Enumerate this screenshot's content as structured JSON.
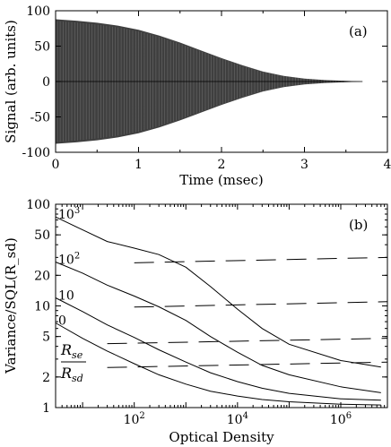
{
  "chart_data": [
    {
      "type": "area",
      "panel_label": "(a)",
      "xlabel": "Time (msec)",
      "ylabel": "Signal (arb. units)",
      "xlim": [
        0,
        4
      ],
      "ylim": [
        -100,
        100
      ],
      "xticks": [
        "0",
        "1",
        "2",
        "3",
        "4"
      ],
      "yticks": [
        "100",
        "50",
        "0",
        "-50",
        "-100"
      ],
      "series": [
        {
          "kind": "oscillating signal envelope (shaded)",
          "color": "#2a2a2a",
          "x": [
            0,
            0.25,
            0.5,
            0.75,
            1.0,
            1.25,
            1.5,
            1.75,
            2.0,
            2.25,
            2.5,
            2.75,
            3.0,
            3.25,
            3.5,
            3.7
          ],
          "upper": [
            88,
            86,
            83,
            79,
            73,
            65,
            55,
            44,
            33,
            23,
            14,
            8,
            4,
            2,
            1,
            0
          ],
          "lower": [
            -88,
            -86,
            -83,
            -79,
            -73,
            -65,
            -55,
            -44,
            -33,
            -23,
            -14,
            -8,
            -4,
            -2,
            -1,
            0
          ]
        }
      ]
    },
    {
      "type": "line",
      "panel_label": "(b)",
      "xlabel": "Optical Density",
      "ylabel": "Variance/SQL(R_sd)",
      "xscale": "log",
      "yscale": "log",
      "xlim": [
        3,
        8000000
      ],
      "ylim": [
        1,
        100
      ],
      "xticks": [
        {
          "value": 100,
          "base": "10",
          "exp": "2"
        },
        {
          "value": 10000,
          "base": "10",
          "exp": "4"
        },
        {
          "value": 1000000,
          "base": "10",
          "exp": "6"
        }
      ],
      "yticks": [
        {
          "value": 1,
          "label": "1"
        },
        {
          "value": 2,
          "label": "2"
        },
        {
          "value": 5,
          "label": "5"
        },
        {
          "value": 10,
          "label": "10"
        },
        {
          "value": 20,
          "label": "20"
        },
        {
          "value": 50,
          "label": "50"
        },
        {
          "value": 100,
          "label": "100"
        }
      ],
      "ratio_label": {
        "num": "R",
        "num_sub": "se",
        "den": "R",
        "den_sub": "sd"
      },
      "series": [
        {
          "label": "10",
          "label_exp": "3",
          "x": [
            3,
            10,
            30,
            100,
            300,
            1000,
            3000,
            10000,
            30000,
            100000,
            1000000,
            6000000
          ],
          "y": [
            75,
            56,
            43,
            37,
            32,
            24,
            15.5,
            9.3,
            6.0,
            4.2,
            2.9,
            2.5
          ],
          "asymptote_x": [
            100,
            8000000
          ],
          "asymptote_y": 30
        },
        {
          "label": "10",
          "label_exp": "2",
          "x": [
            3,
            10,
            30,
            100,
            300,
            1000,
            3000,
            10000,
            30000,
            100000,
            1000000,
            6000000
          ],
          "y": [
            27,
            21,
            16,
            12.5,
            9.8,
            7.2,
            5.0,
            3.5,
            2.6,
            2.1,
            1.6,
            1.4
          ],
          "asymptote_x": [
            100,
            8000000
          ],
          "asymptote_y": 11
        },
        {
          "label": "10",
          "x": [
            3,
            10,
            30,
            100,
            300,
            1000,
            3000,
            10000,
            30000,
            100000,
            1000000,
            6000000
          ],
          "y": [
            12,
            8.8,
            6.5,
            4.9,
            3.7,
            2.8,
            2.2,
            1.8,
            1.55,
            1.38,
            1.22,
            1.18
          ],
          "asymptote_x": [
            30,
            8000000
          ],
          "asymptote_y": 4.8
        },
        {
          "label": "0",
          "x": [
            3,
            10,
            30,
            100,
            300,
            1000,
            3000,
            10000,
            30000,
            100000,
            1000000,
            6000000
          ],
          "y": [
            6.8,
            4.8,
            3.6,
            2.7,
            2.1,
            1.7,
            1.45,
            1.3,
            1.2,
            1.14,
            1.08,
            1.06
          ],
          "asymptote_x": [
            30,
            8000000
          ],
          "asymptote_y": 2.8
        }
      ]
    }
  ]
}
